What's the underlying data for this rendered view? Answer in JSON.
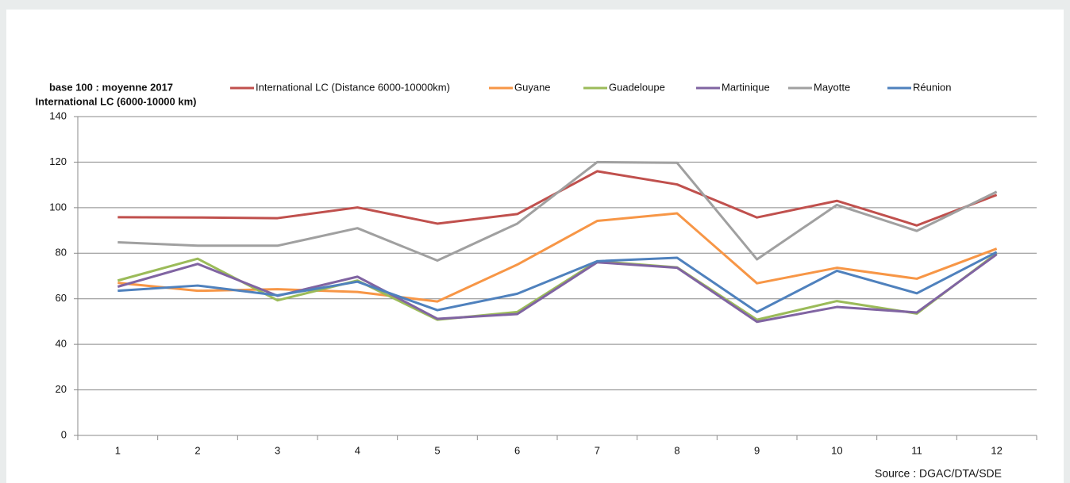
{
  "chart_data": {
    "type": "line",
    "y_label_lines": [
      "base 100 : moyenne 2017",
      "International LC (6000-10000 km)"
    ],
    "source": "Source : DGAC/DTA/SDE",
    "categories": [
      "1",
      "2",
      "3",
      "4",
      "5",
      "6",
      "7",
      "8",
      "9",
      "10",
      "11",
      "12"
    ],
    "ylim": [
      0,
      140
    ],
    "yticks": [
      0,
      20,
      40,
      60,
      80,
      100,
      120,
      140
    ],
    "grid": true,
    "legend": "top",
    "series": [
      {
        "name": "International LC (Distance 6000-10000km)",
        "color": "#c0504d",
        "values": [
          95.8,
          95.7,
          95.4,
          100.1,
          93,
          97.2,
          116,
          110.2,
          95.7,
          103,
          92.2,
          105.6
        ]
      },
      {
        "name": "Guyane",
        "color": "#f79646",
        "values": [
          67,
          63.5,
          64.2,
          63,
          58.8,
          75,
          94.2,
          97.5,
          66.8,
          73.6,
          68.8,
          82
        ]
      },
      {
        "name": "Guadeloupe",
        "color": "#9bbb59",
        "values": [
          68,
          77.6,
          59.3,
          68,
          50.8,
          54.2,
          76.5,
          73.8,
          50.8,
          59,
          53.5,
          80
        ]
      },
      {
        "name": "Martinique",
        "color": "#8064a2",
        "values": [
          65.3,
          75.3,
          61.3,
          69.7,
          51.2,
          53.3,
          76,
          73.6,
          49.9,
          56.4,
          54,
          79.5
        ]
      },
      {
        "name": "Mayotte",
        "color": "#a0a0a0",
        "values": [
          84.8,
          83.3,
          83.3,
          91,
          76.8,
          93,
          120,
          119.7,
          77.3,
          101.2,
          89.8,
          107
        ]
      },
      {
        "name": "Réunion",
        "color": "#4f81bd",
        "values": [
          63.5,
          65.8,
          61.5,
          67.5,
          55,
          62.2,
          76.5,
          78,
          54.2,
          72.3,
          62.4,
          80.5
        ]
      }
    ]
  }
}
